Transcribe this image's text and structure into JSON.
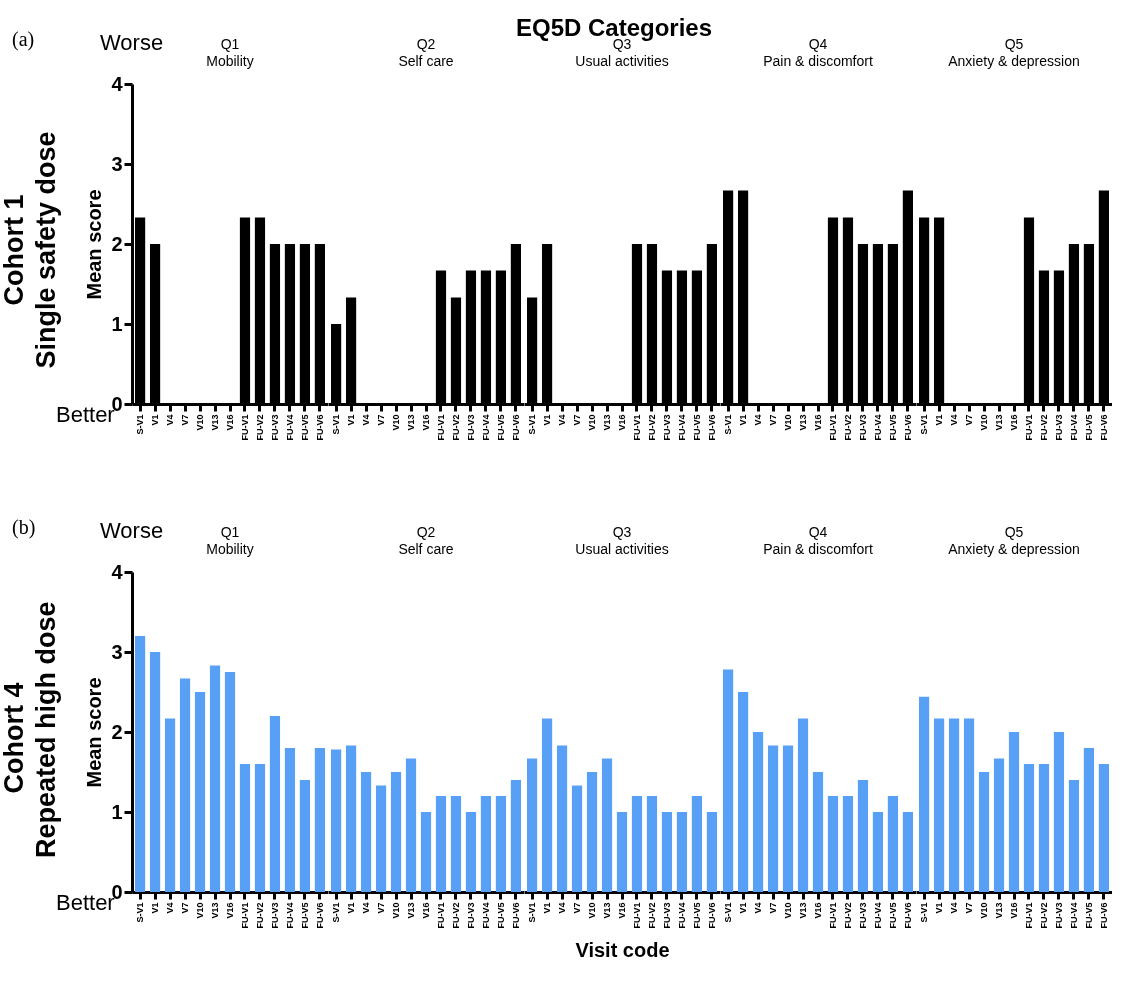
{
  "chart_data": [
    {
      "type": "bar",
      "title": "Q1",
      "subtitle": "Mobility",
      "ylabel": "Mean score",
      "annotations": [
        "(a)",
        "EQ5D Categories",
        "Worse",
        "Better",
        "Cohort 1",
        "Single safety dose"
      ],
      "categories": [
        "S-V1",
        "V1",
        "V4",
        "V7",
        "V10",
        "V13",
        "V16",
        "FU-V1",
        "FU-V2",
        "FU-V3",
        "FU-V4",
        "FU-V5",
        "FU-V6"
      ],
      "values": [
        2.33,
        2,
        0,
        0,
        0,
        0,
        0,
        2.33,
        2.33,
        2,
        2,
        2,
        2
      ],
      "color": "#000000",
      "ylim": [
        0,
        4
      ],
      "yticks": [
        0,
        1,
        2,
        3,
        4
      ]
    },
    {
      "type": "bar",
      "title": "Q2",
      "subtitle": "Self care",
      "categories": [
        "S-V1",
        "V1",
        "V4",
        "V7",
        "V10",
        "V13",
        "V16",
        "FU-V1",
        "FU-V2",
        "FU-V3",
        "FU-V4",
        "FU-V5",
        "FU-V6"
      ],
      "values": [
        1,
        1.33,
        0,
        0,
        0,
        0,
        0,
        1.67,
        1.33,
        1.67,
        1.67,
        1.67,
        2
      ],
      "color": "#000000",
      "ylim": [
        0,
        4
      ],
      "yticks": [
        0,
        1,
        2,
        3,
        4
      ],
      "tick_labels": "x"
    },
    {
      "type": "bar",
      "title": "Q3",
      "subtitle": "Usual activities",
      "categories": [
        "S-V1",
        "V1",
        "V4",
        "V7",
        "V10",
        "V13",
        "V16",
        "FU-V1",
        "FU-V2",
        "FU-V3",
        "FU-V4",
        "FU-V5",
        "FU-V6"
      ],
      "values": [
        1.33,
        2,
        0,
        0,
        0,
        0,
        0,
        2,
        2,
        1.67,
        1.67,
        1.67,
        2
      ],
      "color": "#000000",
      "ylim": [
        0,
        4
      ],
      "yticks": [
        0,
        1,
        2,
        3,
        4
      ],
      "tick_labels": "x"
    },
    {
      "type": "bar",
      "title": "Q4",
      "subtitle": "Pain & discomfort",
      "categories": [
        "S-V1",
        "V1",
        "V4",
        "V7",
        "V10",
        "V13",
        "V16",
        "FU-V1",
        "FU-V2",
        "FU-V3",
        "FU-V4",
        "FU-V5",
        "FU-V6"
      ],
      "values": [
        2.67,
        2.67,
        0,
        0,
        0,
        0,
        0,
        2.33,
        2.33,
        2,
        2,
        2,
        2.67
      ],
      "color": "#000000",
      "ylim": [
        0,
        4
      ],
      "yticks": [
        0,
        1,
        2,
        3,
        4
      ],
      "tick_labels": "x"
    },
    {
      "type": "bar",
      "title": "Q5",
      "subtitle": "Anxiety & depression",
      "categories": [
        "S-V1",
        "V1",
        "V4",
        "V7",
        "V10",
        "V13",
        "V16",
        "FU-V1",
        "FU-V2",
        "FU-V3",
        "FU-V4",
        "FU-V5",
        "FU-V6"
      ],
      "values": [
        2.33,
        2.33,
        0,
        0,
        0,
        0,
        0,
        2.33,
        1.67,
        1.67,
        2,
        2,
        2.67
      ],
      "color": "#000000",
      "ylim": [
        0,
        4
      ],
      "yticks": [
        0,
        1,
        2,
        3,
        4
      ],
      "tick_labels": "x"
    },
    {
      "type": "bar",
      "title": "Q1",
      "subtitle": "Mobility",
      "ylabel": "Mean score",
      "annotations": [
        "(b)",
        "Worse",
        "Better",
        "Cohort 4",
        "Repeated high dose"
      ],
      "categories": [
        "S-V1",
        "V1",
        "V4",
        "V7",
        "V10",
        "V13",
        "V16",
        "FU-V1",
        "FU-V2",
        "FU-V3",
        "FU-V4",
        "FU-V5",
        "FU-V6"
      ],
      "values": [
        3.2,
        3,
        2.17,
        2.67,
        2.5,
        2.83,
        2.75,
        1.6,
        1.6,
        2.2,
        1.8,
        1.4,
        1.8
      ],
      "color": "#58a0f6",
      "ylim": [
        0,
        4
      ],
      "yticks": [
        0,
        1,
        2,
        3,
        4
      ]
    },
    {
      "type": "bar",
      "title": "Q2",
      "subtitle": "Self care",
      "categories": [
        "S-V1",
        "V1",
        "V4",
        "V7",
        "V10",
        "V13",
        "V16",
        "FU-V1",
        "FU-V2",
        "FU-V3",
        "FU-V4",
        "FU-V5",
        "FU-V6"
      ],
      "values": [
        1.78,
        1.83,
        1.5,
        1.33,
        1.5,
        1.67,
        1,
        1.2,
        1.2,
        1,
        1.2,
        1.2,
        1.4
      ],
      "color": "#58a0f6",
      "ylim": [
        0,
        4
      ],
      "yticks": [
        0,
        1,
        2,
        3,
        4
      ],
      "tick_labels": "x"
    },
    {
      "type": "bar",
      "title": "Q3",
      "subtitle": "Usual activities",
      "xlabel": "Visit code",
      "categories": [
        "S-V1",
        "V1",
        "V4",
        "V7",
        "V10",
        "V13",
        "V16",
        "FU-V1",
        "FU-V2",
        "FU-V3",
        "FU-V4",
        "FU-V5",
        "FU-V6"
      ],
      "values": [
        1.67,
        2.17,
        1.83,
        1.33,
        1.5,
        1.67,
        1,
        1.2,
        1.2,
        1,
        1,
        1.2,
        1
      ],
      "color": "#58a0f6",
      "ylim": [
        0,
        4
      ],
      "yticks": [
        0,
        1,
        2,
        3,
        4
      ],
      "tick_labels": "x"
    },
    {
      "type": "bar",
      "title": "Q4",
      "subtitle": "Pain & discomfort",
      "categories": [
        "S-V1",
        "V1",
        "V4",
        "V7",
        "V10",
        "V13",
        "V16",
        "FU-V1",
        "FU-V2",
        "FU-V3",
        "FU-V4",
        "FU-V5",
        "FU-V6"
      ],
      "values": [
        2.78,
        2.5,
        2,
        1.83,
        1.83,
        2.17,
        1.5,
        1.2,
        1.2,
        1.4,
        1,
        1.2,
        1
      ],
      "color": "#58a0f6",
      "ylim": [
        0,
        4
      ],
      "yticks": [
        0,
        1,
        2,
        3,
        4
      ],
      "tick_labels": "x"
    },
    {
      "type": "bar",
      "title": "Q5",
      "subtitle": "Anxiety & depression",
      "categories": [
        "S-V1",
        "V1",
        "V4",
        "V7",
        "V10",
        "V13",
        "V16",
        "FU-V1",
        "FU-V2",
        "FU-V3",
        "FU-V4",
        "FU-V5",
        "FU-V6"
      ],
      "values": [
        2.44,
        2.17,
        2.17,
        2.17,
        1.5,
        1.67,
        2,
        1.6,
        1.6,
        2,
        1.4,
        1.8,
        1.6
      ],
      "color": "#58a0f6",
      "ylim": [
        0,
        4
      ],
      "yticks": [
        0,
        1,
        2,
        3,
        4
      ],
      "tick_labels": "x"
    }
  ]
}
